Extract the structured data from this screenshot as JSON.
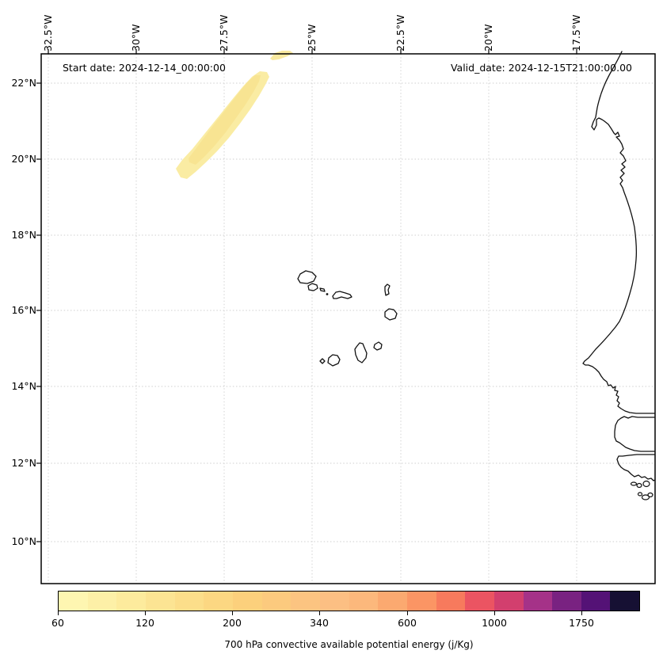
{
  "annotations": {
    "start_date": "Start date: 2024-12-14_00:00:00",
    "valid_date": "Valid_date: 2024-12-15T21:00:00.00"
  },
  "axes": {
    "top_labels": [
      "32.5°W",
      "30°W",
      "27.5°W",
      "25°W",
      "22.5°W",
      "20°W",
      "17.5°W"
    ],
    "left_labels": [
      "22°N",
      "20°N",
      "18°N",
      "16°N",
      "14°N",
      "12°N",
      "10°N"
    ]
  },
  "colorbar": {
    "title": "700 hPa convective available potential energy (j/Kg)",
    "tick_labels": [
      "60",
      "120",
      "200",
      "340",
      "600",
      "1000",
      "1750"
    ],
    "segment_colors": [
      "#fef6b1",
      "#fdf0a7",
      "#fdeb9d",
      "#fce493",
      "#fcde8a",
      "#fcd782",
      "#fcd07c",
      "#fcca7e",
      "#fcc481",
      "#fcbf83",
      "#fcb87c",
      "#fba970",
      "#fb9564",
      "#f77a5d",
      "#eb5462",
      "#d23f6e",
      "#a53288",
      "#792281",
      "#541276",
      "#161033"
    ]
  },
  "chart_data": {
    "type": "heatmap",
    "title": "700 hPa convective available potential energy (j/Kg)",
    "annotations": [
      "Start date: 2024-12-14_00:00:00",
      "Valid_date: 2024-12-15T21:00:00.00"
    ],
    "x_axis": {
      "label": "longitude",
      "ticks": [
        "32.5°W",
        "30°W",
        "27.5°W",
        "25°W",
        "22.5°W",
        "20°W",
        "17.5°W"
      ]
    },
    "y_axis": {
      "label": "latitude",
      "ticks": [
        "22°N",
        "20°N",
        "18°N",
        "16°N",
        "14°N",
        "12°N",
        "10°N"
      ]
    },
    "map_extent": {
      "lon_west": -32.7,
      "lon_east": -15.3,
      "lat_south": 8.9,
      "lat_north": 22.8
    },
    "grid": true,
    "legend_position": "bottom-colorbar",
    "colorbar_tick_values": [
      60,
      120,
      200,
      340,
      600,
      1000,
      1750
    ],
    "colorbar_n_segments": 20,
    "series": [
      {
        "name": "CAPE filled contour band",
        "description": "Single elongated SW-NE oriented band of low CAPE values over the ocean between about 28.7°W/19.6°N and 26.3°W/22.3°N; small detached patch at the northern plot edge near 26°W",
        "value_range_j_per_kg": [
          60,
          120
        ]
      }
    ],
    "map_features": [
      "West African coastline (Mauritania, Senegal, Gambia, Guinea-Bissau)",
      "Cape Verde islands",
      "Bijagós archipelago"
    ]
  }
}
